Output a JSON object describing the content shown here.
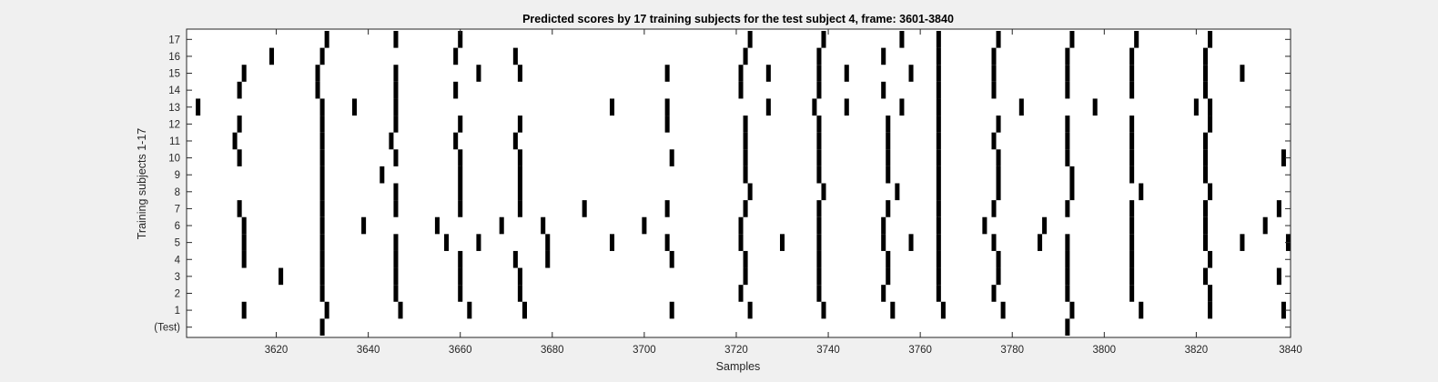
{
  "chart_data": {
    "type": "heatmap",
    "title": "Predicted scores by 17 training subjects for the test subject 4, frame: 3601-3840",
    "xlabel": "Samples",
    "ylabel": "Training subjects 1-17",
    "xlim": [
      3601,
      3840
    ],
    "x_ticks": [
      3620,
      3640,
      3660,
      3680,
      3700,
      3720,
      3740,
      3760,
      3780,
      3800,
      3820,
      3840
    ],
    "y_tick_labels": [
      "17",
      "16",
      "15",
      "14",
      "13",
      "12",
      "11",
      "10",
      "9",
      "8",
      "7",
      "6",
      "5",
      "4",
      "3",
      "2",
      "1",
      "(Test)"
    ],
    "grid": false,
    "colors": {
      "mark": "#000000",
      "background": "#ffffff",
      "figure": "#f0f0f0",
      "axis": "#262626"
    },
    "rows": [
      {
        "label": "17",
        "x": [
          3631,
          3646,
          3660,
          3723,
          3739,
          3756,
          3764,
          3777,
          3793,
          3807,
          3823
        ]
      },
      {
        "label": "16",
        "x": [
          3619,
          3630,
          3659,
          3672,
          3722,
          3738,
          3752,
          3764,
          3776,
          3792,
          3806,
          3822
        ]
      },
      {
        "label": "15",
        "x": [
          3613,
          3629,
          3646,
          3664,
          3673,
          3705,
          3721,
          3727,
          3738,
          3744,
          3758,
          3764,
          3776,
          3792,
          3806,
          3822,
          3830
        ]
      },
      {
        "label": "14",
        "x": [
          3612,
          3629,
          3646,
          3659,
          3721,
          3738,
          3752,
          3764,
          3776,
          3792,
          3806,
          3822
        ]
      },
      {
        "label": "13",
        "x": [
          3603,
          3630,
          3637,
          3646,
          3693,
          3705,
          3727,
          3737,
          3744,
          3756,
          3764,
          3782,
          3798,
          3820,
          3823
        ]
      },
      {
        "label": "12",
        "x": [
          3612,
          3630,
          3646,
          3660,
          3673,
          3705,
          3722,
          3738,
          3753,
          3764,
          3777,
          3792,
          3806,
          3823
        ]
      },
      {
        "label": "11",
        "x": [
          3611,
          3630,
          3645,
          3659,
          3672,
          3722,
          3738,
          3753,
          3764,
          3776,
          3792,
          3806,
          3822
        ]
      },
      {
        "label": "10",
        "x": [
          3612,
          3630,
          3646,
          3660,
          3673,
          3706,
          3722,
          3738,
          3753,
          3764,
          3777,
          3792,
          3806,
          3822,
          3839
        ]
      },
      {
        "label": "9",
        "x": [
          3630,
          3643,
          3660,
          3673,
          3722,
          3738,
          3753,
          3764,
          3777,
          3793,
          3806,
          3822
        ]
      },
      {
        "label": "8",
        "x": [
          3630,
          3646,
          3660,
          3673,
          3723,
          3739,
          3755,
          3764,
          3777,
          3793,
          3808,
          3823
        ]
      },
      {
        "label": "7",
        "x": [
          3612,
          3630,
          3646,
          3660,
          3673,
          3687,
          3705,
          3722,
          3738,
          3753,
          3764,
          3776,
          3792,
          3806,
          3822,
          3838
        ]
      },
      {
        "label": "6",
        "x": [
          3613,
          3630,
          3639,
          3655,
          3669,
          3678,
          3700,
          3721,
          3738,
          3752,
          3764,
          3774,
          3787,
          3806,
          3822,
          3835
        ]
      },
      {
        "label": "5",
        "x": [
          3613,
          3630,
          3646,
          3657,
          3664,
          3679,
          3693,
          3705,
          3721,
          3730,
          3738,
          3752,
          3758,
          3764,
          3776,
          3786,
          3792,
          3806,
          3822,
          3830,
          3840
        ]
      },
      {
        "label": "4",
        "x": [
          3613,
          3630,
          3646,
          3660,
          3672,
          3679,
          3706,
          3722,
          3738,
          3753,
          3764,
          3777,
          3792,
          3806,
          3823
        ]
      },
      {
        "label": "3",
        "x": [
          3621,
          3630,
          3646,
          3660,
          3673,
          3722,
          3738,
          3753,
          3764,
          3777,
          3792,
          3806,
          3822,
          3838
        ]
      },
      {
        "label": "2",
        "x": [
          3630,
          3646,
          3660,
          3673,
          3721,
          3738,
          3752,
          3764,
          3776,
          3792,
          3806,
          3823
        ]
      },
      {
        "label": "1",
        "x": [
          3613,
          3631,
          3647,
          3662,
          3674,
          3706,
          3723,
          3739,
          3754,
          3765,
          3778,
          3793,
          3808,
          3823,
          3839
        ]
      },
      {
        "label": "(Test)",
        "x": [
          3630,
          3792
        ]
      }
    ]
  }
}
